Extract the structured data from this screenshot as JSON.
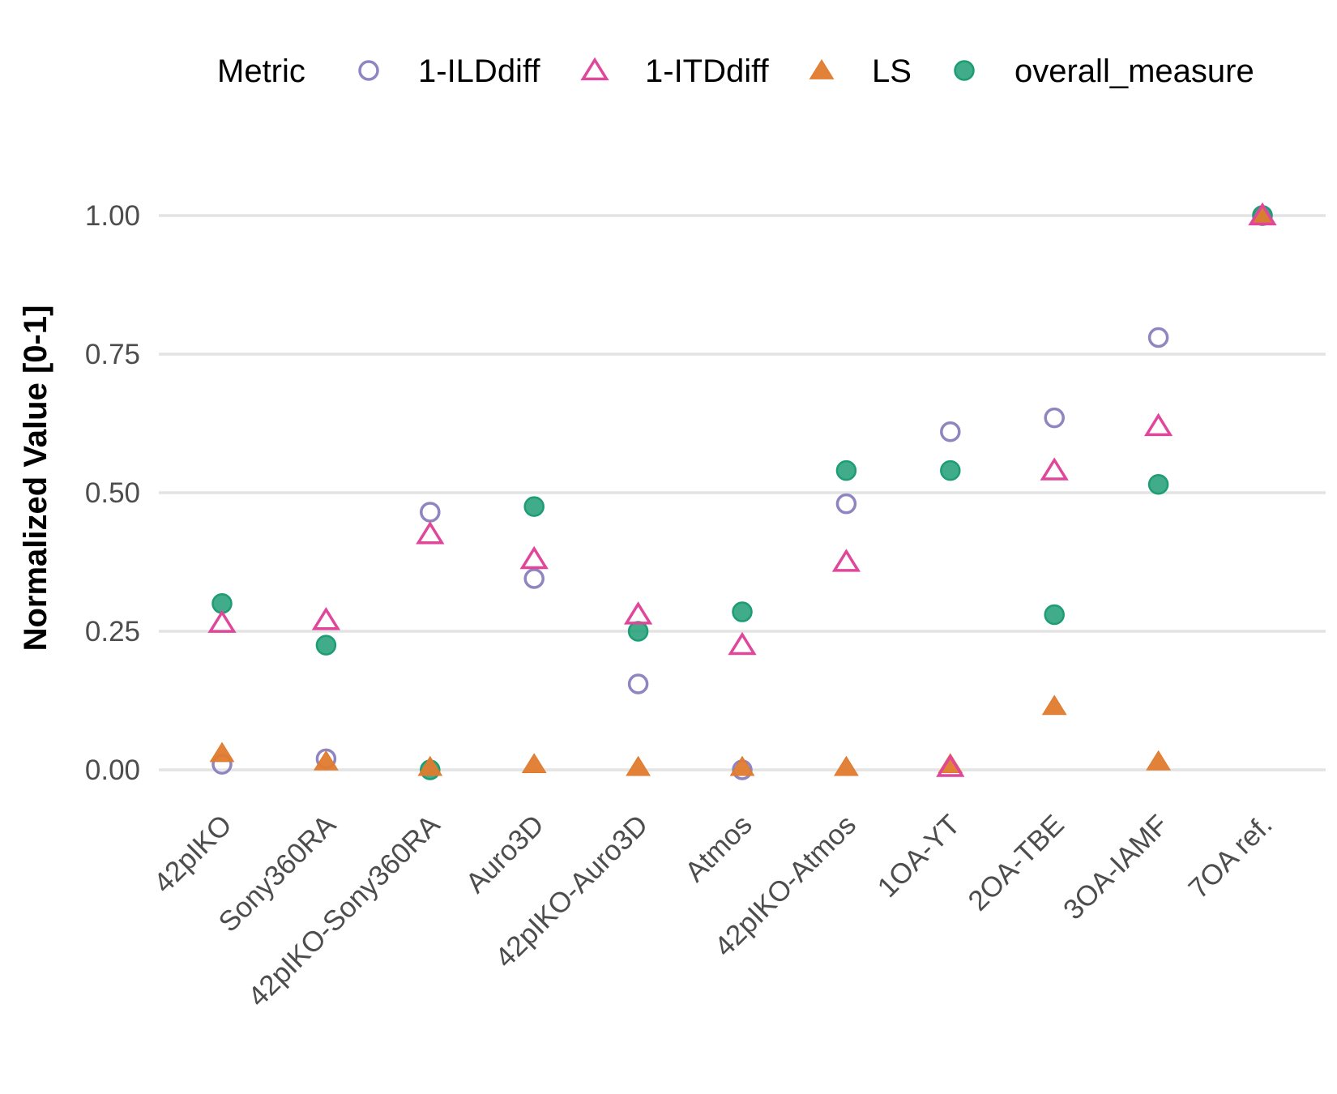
{
  "chart_data": {
    "type": "scatter",
    "ylabel": "Normalized Value [0-1]",
    "xlabel": "",
    "ylim": [
      -0.05,
      1.1
    ],
    "yticks": [
      0.0,
      0.25,
      0.5,
      0.75,
      1.0
    ],
    "ytick_labels": [
      "0.00",
      "0.25",
      "0.50",
      "0.75",
      "1.00"
    ],
    "grid": true,
    "legend_position": "top",
    "legend_title": "Metric",
    "categories": [
      "42pIKO",
      "Sony360RA",
      "42pIKO-Sony360RA",
      "Auro3D",
      "42pIKO-Auro3D",
      "Atmos",
      "42pIKO-Atmos",
      "1OA-YT",
      "2OA-TBE",
      "3OA-IAMF",
      "7OA ref."
    ],
    "series": [
      {
        "name": "1-ILDdiff",
        "marker": "circle-open",
        "color": "#8f85c0",
        "values": [
          0.01,
          0.02,
          0.465,
          0.345,
          0.155,
          0.0,
          0.48,
          0.61,
          0.635,
          0.78,
          1.0
        ]
      },
      {
        "name": "1-ITDdiff",
        "marker": "triangle-open",
        "color": "#e0479b",
        "values": [
          0.265,
          0.27,
          0.425,
          0.38,
          0.28,
          0.225,
          0.375,
          0.005,
          0.54,
          0.62,
          1.0
        ]
      },
      {
        "name": "LS",
        "marker": "triangle-filled",
        "color": "#e07b2e",
        "values": [
          0.03,
          0.015,
          0.005,
          0.01,
          0.005,
          0.005,
          0.005,
          0.01,
          0.115,
          0.015,
          1.0
        ]
      },
      {
        "name": "overall_measure",
        "marker": "circle-filled",
        "color": "#1e9d74",
        "values": [
          0.3,
          0.225,
          0.0,
          0.475,
          0.25,
          0.285,
          0.54,
          0.54,
          0.28,
          0.515,
          1.0
        ]
      }
    ]
  }
}
